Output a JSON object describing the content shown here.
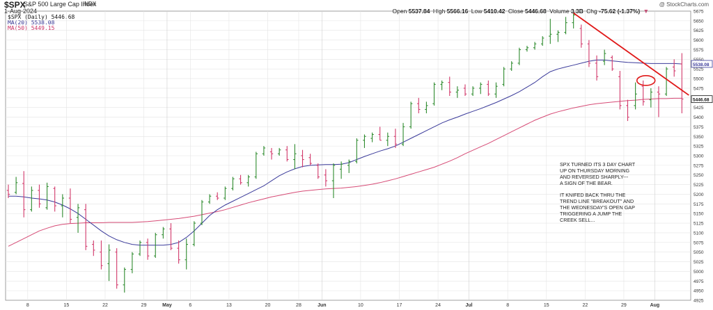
{
  "header": {
    "symbol": "$SPX",
    "name": "S&P 500 Large Cap Index",
    "exchange": "INDX",
    "date": "1-Aug-2024",
    "watermark": "@ StockCharts.com",
    "ohlc": {
      "open_label": "Open",
      "open": "5537.84",
      "high_label": "High",
      "high": "5566.16",
      "low_label": "Low",
      "low": "5410.42",
      "close_label": "Close",
      "close": "5446.68",
      "volume_label": "Volume",
      "volume": "3.3B",
      "chg_label": "Chg",
      "chg": "-75.62 (-1.37%)",
      "chg_arrow": "▼"
    }
  },
  "legend": {
    "price": "$SPX (Daily) 5446.68",
    "ma20": "MA(20) 5538.08",
    "ma50": "MA(50) 5449.15"
  },
  "annotation": {
    "para1": "SPX TURNED ITS 3 DAY CHART\nUP ON THURSDAY MORNING\nAND REVERSED SHARPLY---\nA SIGN OF THE BEAR.",
    "para2": "IT KNIFED BACK THRU THE\nTREND LINE \"BREAKOUT\" AND\nTHE WEDNESDAY'S OPEN GAP\nTRIGGERING A JUMP THE\nCREEK SELL..."
  },
  "colors": {
    "up": "#2e8b2e",
    "down": "#d2386a",
    "ma20": "#3a3a9a",
    "ma50": "#d64a75",
    "trendline": "#e01818",
    "grid": "#e4e4e4",
    "close_tag": "#111111"
  },
  "chart_data": {
    "type": "line",
    "title": "$SPX S&P 500 Large Cap Index",
    "y_axis_side": "right",
    "ylim": [
      4925,
      5675
    ],
    "yticks": [
      4925,
      4950,
      4975,
      5000,
      5025,
      5050,
      5075,
      5100,
      5125,
      5150,
      5175,
      5200,
      5225,
      5250,
      5275,
      5300,
      5325,
      5350,
      5375,
      5400,
      5425,
      5450,
      5475,
      5500,
      5525,
      5550,
      5575,
      5600,
      5625,
      5650,
      5675
    ],
    "xtick_labels": [
      "8",
      "15",
      "22",
      "29",
      "May",
      "6",
      "13",
      "20",
      "28",
      "Jun",
      "10",
      "17",
      "24",
      "Jul",
      "8",
      "15",
      "22",
      "29",
      "Aug"
    ],
    "xtick_bold": [
      "May",
      "Jun",
      "Jul",
      "Aug"
    ],
    "grid": true,
    "ohlc_bars": [
      {
        "o": 5210,
        "h": 5225,
        "l": 5190,
        "c": 5200
      },
      {
        "o": 5205,
        "h": 5245,
        "l": 5200,
        "c": 5230
      },
      {
        "o": 5228,
        "h": 5260,
        "l": 5140,
        "c": 5160
      },
      {
        "o": 5160,
        "h": 5220,
        "l": 5155,
        "c": 5210
      },
      {
        "o": 5210,
        "h": 5225,
        "l": 5165,
        "c": 5175
      },
      {
        "o": 5165,
        "h": 5230,
        "l": 5160,
        "c": 5220
      },
      {
        "o": 5215,
        "h": 5220,
        "l": 5155,
        "c": 5170
      },
      {
        "o": 5170,
        "h": 5200,
        "l": 5140,
        "c": 5190
      },
      {
        "o": 5190,
        "h": 5215,
        "l": 5125,
        "c": 5135
      },
      {
        "o": 5140,
        "h": 5175,
        "l": 5100,
        "c": 5165
      },
      {
        "o": 5160,
        "h": 5175,
        "l": 5055,
        "c": 5065
      },
      {
        "o": 5070,
        "h": 5080,
        "l": 5040,
        "c": 5055
      },
      {
        "o": 5050,
        "h": 5080,
        "l": 5005,
        "c": 5015
      },
      {
        "o": 5020,
        "h": 5070,
        "l": 4975,
        "c": 5055
      },
      {
        "o": 5050,
        "h": 5060,
        "l": 4955,
        "c": 4965
      },
      {
        "o": 4965,
        "h": 5010,
        "l": 4945,
        "c": 5005
      },
      {
        "o": 5005,
        "h": 5050,
        "l": 4995,
        "c": 5045
      },
      {
        "o": 5045,
        "h": 5080,
        "l": 5040,
        "c": 5075
      },
      {
        "o": 5075,
        "h": 5085,
        "l": 5030,
        "c": 5040
      },
      {
        "o": 5040,
        "h": 5100,
        "l": 5035,
        "c": 5095
      },
      {
        "o": 5095,
        "h": 5115,
        "l": 5085,
        "c": 5110
      },
      {
        "o": 5110,
        "h": 5125,
        "l": 5055,
        "c": 5060
      },
      {
        "o": 5060,
        "h": 5080,
        "l": 5020,
        "c": 5030
      },
      {
        "o": 5030,
        "h": 5085,
        "l": 5005,
        "c": 5070
      },
      {
        "o": 5070,
        "h": 5130,
        "l": 5065,
        "c": 5125
      },
      {
        "o": 5125,
        "h": 5185,
        "l": 5120,
        "c": 5180
      },
      {
        "o": 5180,
        "h": 5200,
        "l": 5175,
        "c": 5195
      },
      {
        "o": 5195,
        "h": 5205,
        "l": 5185,
        "c": 5190
      },
      {
        "o": 5190,
        "h": 5220,
        "l": 5185,
        "c": 5215
      },
      {
        "o": 5215,
        "h": 5245,
        "l": 5210,
        "c": 5240
      },
      {
        "o": 5240,
        "h": 5250,
        "l": 5225,
        "c": 5230
      },
      {
        "o": 5230,
        "h": 5250,
        "l": 5220,
        "c": 5245
      },
      {
        "o": 5245,
        "h": 5310,
        "l": 5240,
        "c": 5305
      },
      {
        "o": 5305,
        "h": 5325,
        "l": 5300,
        "c": 5320
      },
      {
        "o": 5310,
        "h": 5320,
        "l": 5290,
        "c": 5305
      },
      {
        "o": 5305,
        "h": 5320,
        "l": 5300,
        "c": 5315
      },
      {
        "o": 5315,
        "h": 5325,
        "l": 5285,
        "c": 5290
      },
      {
        "o": 5290,
        "h": 5330,
        "l": 5265,
        "c": 5305
      },
      {
        "o": 5300,
        "h": 5315,
        "l": 5270,
        "c": 5290
      },
      {
        "o": 5295,
        "h": 5305,
        "l": 5275,
        "c": 5280
      },
      {
        "o": 5275,
        "h": 5280,
        "l": 5240,
        "c": 5245
      },
      {
        "o": 5250,
        "h": 5265,
        "l": 5220,
        "c": 5235
      },
      {
        "o": 5235,
        "h": 5280,
        "l": 5190,
        "c": 5275
      },
      {
        "o": 5265,
        "h": 5285,
        "l": 5240,
        "c": 5278
      },
      {
        "o": 5275,
        "h": 5290,
        "l": 5255,
        "c": 5285
      },
      {
        "o": 5285,
        "h": 5345,
        "l": 5280,
        "c": 5340
      },
      {
        "o": 5340,
        "h": 5355,
        "l": 5320,
        "c": 5350
      },
      {
        "o": 5345,
        "h": 5360,
        "l": 5335,
        "c": 5355
      },
      {
        "o": 5355,
        "h": 5375,
        "l": 5340,
        "c": 5340
      },
      {
        "o": 5340,
        "h": 5360,
        "l": 5325,
        "c": 5350
      },
      {
        "o": 5350,
        "h": 5370,
        "l": 5320,
        "c": 5330
      },
      {
        "o": 5330,
        "h": 5385,
        "l": 5325,
        "c": 5375
      },
      {
        "o": 5375,
        "h": 5440,
        "l": 5370,
        "c": 5435
      },
      {
        "o": 5435,
        "h": 5450,
        "l": 5410,
        "c": 5420
      },
      {
        "o": 5420,
        "h": 5440,
        "l": 5410,
        "c": 5430
      },
      {
        "o": 5435,
        "h": 5490,
        "l": 5430,
        "c": 5485
      },
      {
        "o": 5485,
        "h": 5495,
        "l": 5470,
        "c": 5490
      },
      {
        "o": 5490,
        "h": 5505,
        "l": 5455,
        "c": 5465
      },
      {
        "o": 5465,
        "h": 5480,
        "l": 5450,
        "c": 5470
      },
      {
        "o": 5475,
        "h": 5485,
        "l": 5455,
        "c": 5460
      },
      {
        "o": 5460,
        "h": 5480,
        "l": 5455,
        "c": 5475
      },
      {
        "o": 5475,
        "h": 5490,
        "l": 5460,
        "c": 5485
      },
      {
        "o": 5485,
        "h": 5495,
        "l": 5455,
        "c": 5460
      },
      {
        "o": 5460,
        "h": 5490,
        "l": 5450,
        "c": 5480
      },
      {
        "o": 5485,
        "h": 5530,
        "l": 5480,
        "c": 5525
      },
      {
        "o": 5525,
        "h": 5545,
        "l": 5520,
        "c": 5540
      },
      {
        "o": 5540,
        "h": 5580,
        "l": 5535,
        "c": 5575
      },
      {
        "o": 5575,
        "h": 5585,
        "l": 5570,
        "c": 5580
      },
      {
        "o": 5580,
        "h": 5595,
        "l": 5575,
        "c": 5590
      },
      {
        "o": 5590,
        "h": 5610,
        "l": 5585,
        "c": 5605
      },
      {
        "o": 5610,
        "h": 5655,
        "l": 5590,
        "c": 5615
      },
      {
        "o": 5615,
        "h": 5625,
        "l": 5595,
        "c": 5620
      },
      {
        "o": 5620,
        "h": 5660,
        "l": 5615,
        "c": 5645
      },
      {
        "o": 5645,
        "h": 5670,
        "l": 5630,
        "c": 5665
      },
      {
        "o": 5630,
        "h": 5640,
        "l": 5580,
        "c": 5590
      },
      {
        "o": 5590,
        "h": 5600,
        "l": 5530,
        "c": 5540
      },
      {
        "o": 5540,
        "h": 5560,
        "l": 5495,
        "c": 5505
      },
      {
        "o": 5545,
        "h": 5575,
        "l": 5535,
        "c": 5565
      },
      {
        "o": 5555,
        "h": 5560,
        "l": 5520,
        "c": 5525
      },
      {
        "o": 5505,
        "h": 5520,
        "l": 5420,
        "c": 5430
      },
      {
        "o": 5430,
        "h": 5445,
        "l": 5390,
        "c": 5400
      },
      {
        "o": 5430,
        "h": 5490,
        "l": 5420,
        "c": 5460
      },
      {
        "o": 5480,
        "h": 5495,
        "l": 5430,
        "c": 5440
      },
      {
        "o": 5445,
        "h": 5475,
        "l": 5425,
        "c": 5465
      },
      {
        "o": 5465,
        "h": 5480,
        "l": 5400,
        "c": 5460
      },
      {
        "o": 5460,
        "h": 5530,
        "l": 5455,
        "c": 5525
      },
      {
        "o": 5530,
        "h": 5550,
        "l": 5505,
        "c": 5520
      },
      {
        "o": 5538,
        "h": 5566,
        "l": 5410,
        "c": 5447
      }
    ],
    "series": [
      {
        "name": "MA(20) 5538.08",
        "values": [
          5195,
          5195,
          5193,
          5190,
          5188,
          5185,
          5180,
          5172,
          5162,
          5150,
          5135,
          5120,
          5105,
          5092,
          5082,
          5075,
          5070,
          5068,
          5068,
          5068,
          5068,
          5070,
          5075,
          5088,
          5105,
          5125,
          5145,
          5160,
          5172,
          5182,
          5192,
          5202,
          5212,
          5222,
          5235,
          5248,
          5258,
          5266,
          5272,
          5275,
          5276,
          5277,
          5277,
          5278,
          5282,
          5290,
          5298,
          5305,
          5312,
          5318,
          5325,
          5335,
          5345,
          5355,
          5365,
          5375,
          5385,
          5393,
          5400,
          5408,
          5415,
          5422,
          5430,
          5438,
          5447,
          5456,
          5466,
          5478,
          5490,
          5505,
          5518,
          5525,
          5530,
          5535,
          5540,
          5545,
          5548,
          5548,
          5546,
          5544,
          5542,
          5541,
          5540,
          5539,
          5539,
          5539,
          5539,
          5538
        ]
      },
      {
        "name": "MA(50) 5449.15",
        "values": [
          5065,
          5075,
          5085,
          5095,
          5105,
          5112,
          5118,
          5122,
          5124,
          5125,
          5126,
          5126,
          5126,
          5127,
          5127,
          5127,
          5127,
          5128,
          5129,
          5131,
          5133,
          5135,
          5137,
          5140,
          5143,
          5147,
          5151,
          5155,
          5160,
          5166,
          5172,
          5178,
          5183,
          5188,
          5193,
          5197,
          5201,
          5205,
          5208,
          5210,
          5212,
          5214,
          5215,
          5216,
          5218,
          5220,
          5223,
          5226,
          5230,
          5235,
          5240,
          5246,
          5252,
          5258,
          5264,
          5270,
          5278,
          5286,
          5295,
          5305,
          5314,
          5323,
          5332,
          5342,
          5352,
          5362,
          5372,
          5382,
          5392,
          5400,
          5408,
          5414,
          5419,
          5424,
          5428,
          5432,
          5435,
          5437,
          5439,
          5441,
          5443,
          5444,
          5446,
          5447,
          5448,
          5448,
          5449,
          5449
        ]
      }
    ],
    "last_values": {
      "ma20": "5538.08",
      "close": "5446.68"
    },
    "trendline": {
      "from": {
        "bar": 73,
        "y": 5670
      },
      "to": {
        "bar": 87,
        "y": 5475
      }
    },
    "circle": {
      "bar": 82,
      "y": 5495
    }
  }
}
